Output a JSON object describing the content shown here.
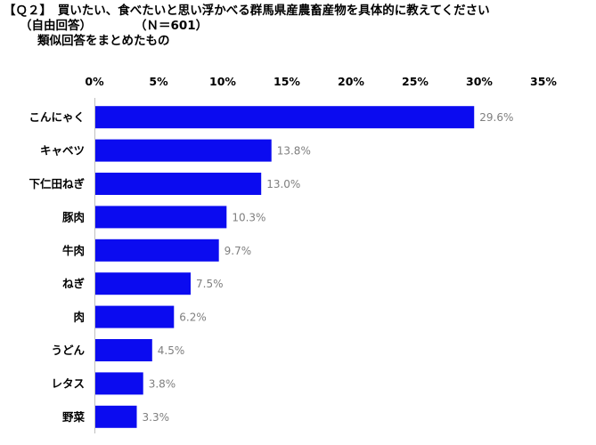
{
  "title": {
    "line1": "【Ｑ２】　買いたい、食べたいと思い浮かべる群馬県産農畜産物を具体的に教えてください",
    "line2a": "（自由回答）",
    "line2b": "（Ｎ＝601）",
    "line3": "類似回答をまとめたもの"
  },
  "chart_data": {
    "type": "bar",
    "orientation": "horizontal",
    "categories": [
      "こんにゃく",
      "キャベツ",
      "下仁田ねぎ",
      "豚肉",
      "牛肉",
      "ねぎ",
      "肉",
      "うどん",
      "レタス",
      "野菜"
    ],
    "values": [
      29.6,
      13.8,
      13.0,
      10.3,
      9.7,
      7.5,
      6.2,
      4.5,
      3.8,
      3.3
    ],
    "value_labels": [
      "29.6%",
      "13.8%",
      "13.0%",
      "10.3%",
      "9.7%",
      "7.5%",
      "6.2%",
      "4.5%",
      "3.8%",
      "3.3%"
    ],
    "xlim": [
      0,
      35
    ],
    "xticks": [
      "0%",
      "5%",
      "10%",
      "15%",
      "20%",
      "25%",
      "30%",
      "35%"
    ],
    "tick_step": 5,
    "axis_position": "top",
    "grid": false,
    "bar_color": "#0b0bf0"
  }
}
